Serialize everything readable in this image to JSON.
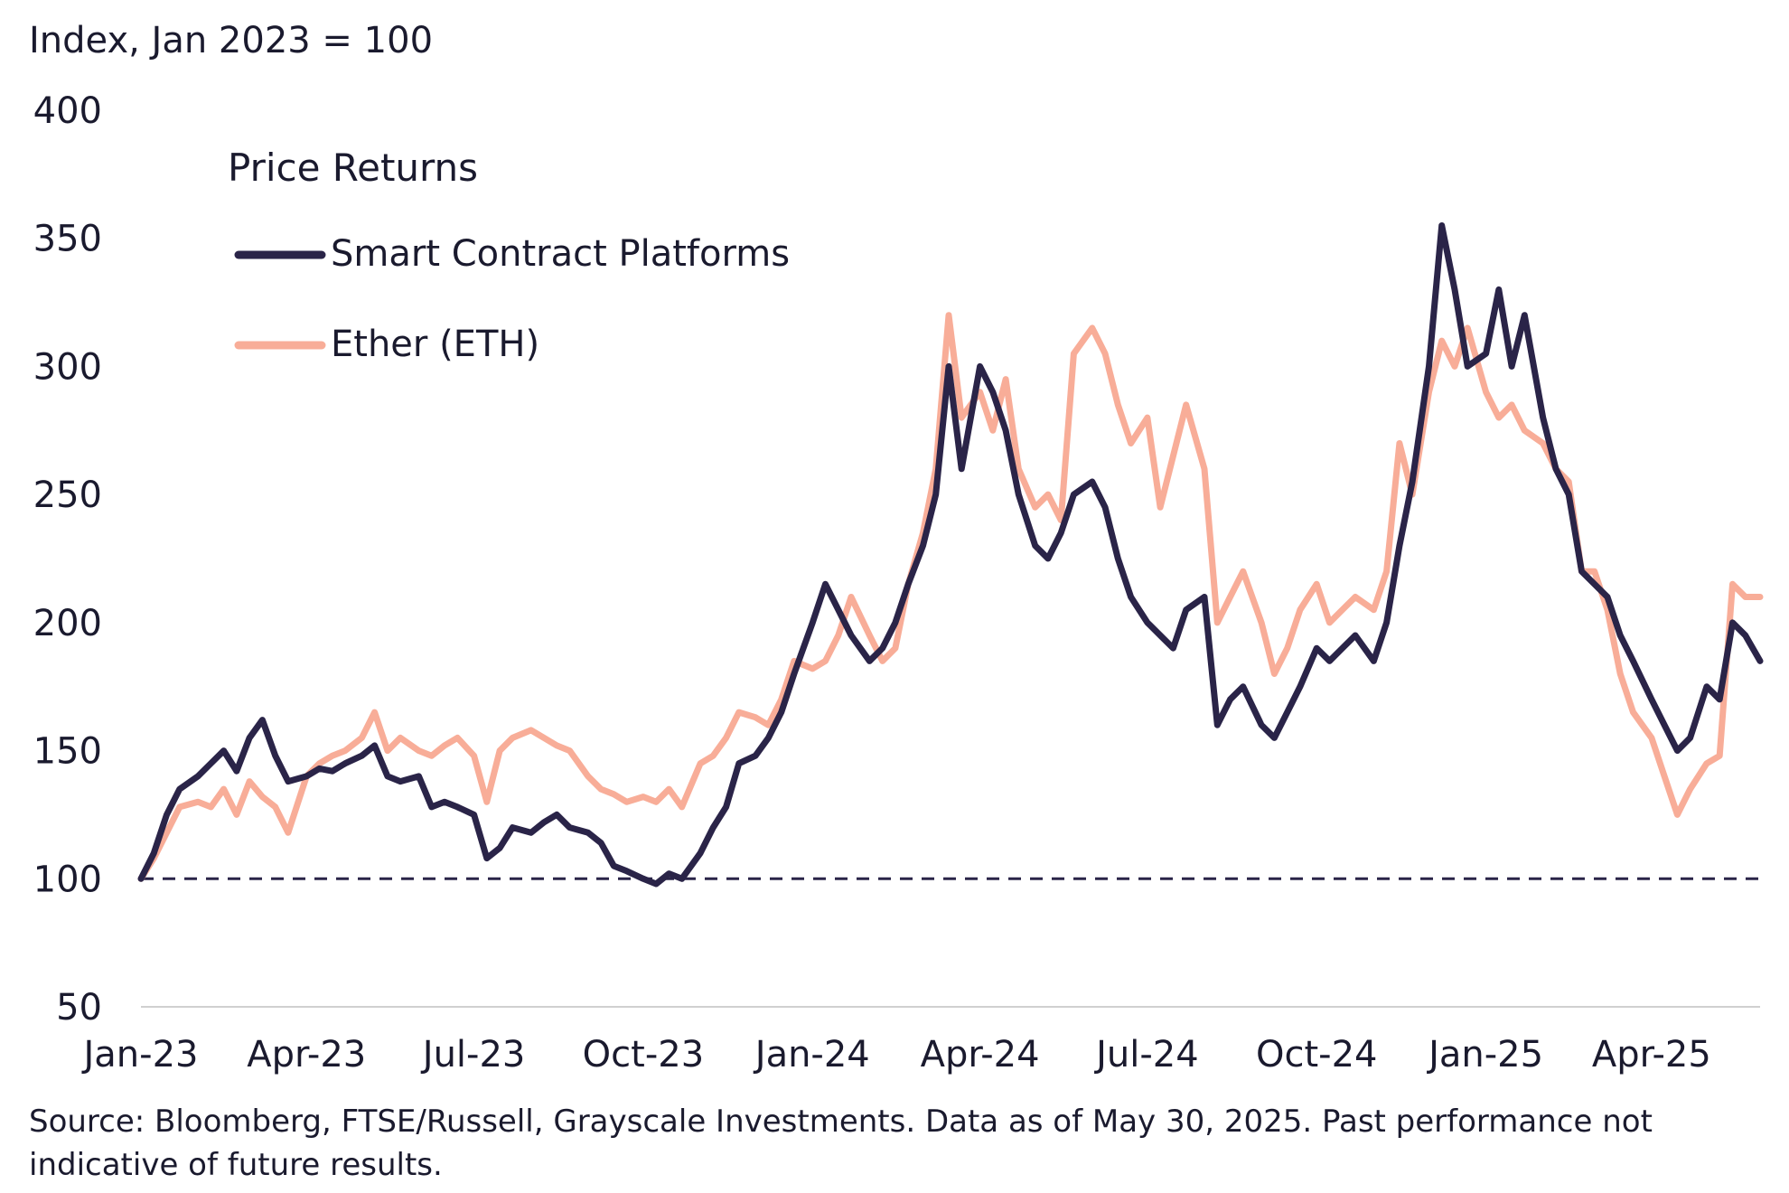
{
  "chart_data": {
    "type": "line",
    "ylabel": "Index, Jan 2023 = 100",
    "ylim": [
      50,
      400
    ],
    "yticks": [
      50,
      100,
      150,
      200,
      250,
      300,
      350,
      400
    ],
    "xlim": [
      "2023-01-01",
      "2025-05-30"
    ],
    "xticks": [
      {
        "date": "2023-01-01",
        "label": "Jan-23"
      },
      {
        "date": "2023-04-01",
        "label": "Apr-23"
      },
      {
        "date": "2023-07-01",
        "label": "Jul-23"
      },
      {
        "date": "2023-10-01",
        "label": "Oct-23"
      },
      {
        "date": "2024-01-01",
        "label": "Jan-24"
      },
      {
        "date": "2024-04-01",
        "label": "Apr-24"
      },
      {
        "date": "2024-07-01",
        "label": "Jul-24"
      },
      {
        "date": "2024-10-01",
        "label": "Oct-24"
      },
      {
        "date": "2025-01-01",
        "label": "Jan-25"
      },
      {
        "date": "2025-04-01",
        "label": "Apr-25"
      }
    ],
    "legend_title": "Price Returns",
    "legend_position": "top-left",
    "reference_line": {
      "value": 100,
      "style": "dashed",
      "color": "#2a2448"
    },
    "grid": false,
    "series": [
      {
        "name": "Smart Contract Platforms",
        "color": "#2a2448",
        "points": [
          [
            "2023-01-01",
            100
          ],
          [
            "2023-01-08",
            110
          ],
          [
            "2023-01-15",
            125
          ],
          [
            "2023-01-22",
            135
          ],
          [
            "2023-02-01",
            140
          ],
          [
            "2023-02-08",
            145
          ],
          [
            "2023-02-15",
            150
          ],
          [
            "2023-02-22",
            142
          ],
          [
            "2023-03-01",
            155
          ],
          [
            "2023-03-08",
            162
          ],
          [
            "2023-03-15",
            148
          ],
          [
            "2023-03-22",
            138
          ],
          [
            "2023-04-01",
            140
          ],
          [
            "2023-04-08",
            143
          ],
          [
            "2023-04-15",
            142
          ],
          [
            "2023-04-22",
            145
          ],
          [
            "2023-05-01",
            148
          ],
          [
            "2023-05-08",
            152
          ],
          [
            "2023-05-15",
            140
          ],
          [
            "2023-05-22",
            138
          ],
          [
            "2023-06-01",
            140
          ],
          [
            "2023-06-08",
            128
          ],
          [
            "2023-06-15",
            130
          ],
          [
            "2023-06-22",
            128
          ],
          [
            "2023-07-01",
            125
          ],
          [
            "2023-07-08",
            108
          ],
          [
            "2023-07-15",
            112
          ],
          [
            "2023-07-22",
            120
          ],
          [
            "2023-08-01",
            118
          ],
          [
            "2023-08-08",
            122
          ],
          [
            "2023-08-15",
            125
          ],
          [
            "2023-08-22",
            120
          ],
          [
            "2023-09-01",
            118
          ],
          [
            "2023-09-08",
            114
          ],
          [
            "2023-09-15",
            105
          ],
          [
            "2023-09-22",
            103
          ],
          [
            "2023-10-01",
            100
          ],
          [
            "2023-10-08",
            98
          ],
          [
            "2023-10-15",
            102
          ],
          [
            "2023-10-22",
            100
          ],
          [
            "2023-11-01",
            110
          ],
          [
            "2023-11-08",
            120
          ],
          [
            "2023-11-15",
            128
          ],
          [
            "2023-11-22",
            145
          ],
          [
            "2023-12-01",
            148
          ],
          [
            "2023-12-08",
            155
          ],
          [
            "2023-12-15",
            165
          ],
          [
            "2023-12-22",
            180
          ],
          [
            "2024-01-01",
            200
          ],
          [
            "2024-01-08",
            215
          ],
          [
            "2024-01-15",
            205
          ],
          [
            "2024-01-22",
            195
          ],
          [
            "2024-02-01",
            185
          ],
          [
            "2024-02-08",
            190
          ],
          [
            "2024-02-15",
            200
          ],
          [
            "2024-02-22",
            215
          ],
          [
            "2024-03-01",
            230
          ],
          [
            "2024-03-08",
            250
          ],
          [
            "2024-03-15",
            300
          ],
          [
            "2024-03-22",
            260
          ],
          [
            "2024-04-01",
            300
          ],
          [
            "2024-04-08",
            290
          ],
          [
            "2024-04-15",
            275
          ],
          [
            "2024-04-22",
            250
          ],
          [
            "2024-05-01",
            230
          ],
          [
            "2024-05-08",
            225
          ],
          [
            "2024-05-15",
            235
          ],
          [
            "2024-05-22",
            250
          ],
          [
            "2024-06-01",
            255
          ],
          [
            "2024-06-08",
            245
          ],
          [
            "2024-06-15",
            225
          ],
          [
            "2024-06-22",
            210
          ],
          [
            "2024-07-01",
            200
          ],
          [
            "2024-07-08",
            195
          ],
          [
            "2024-07-15",
            190
          ],
          [
            "2024-07-22",
            205
          ],
          [
            "2024-08-01",
            210
          ],
          [
            "2024-08-08",
            160
          ],
          [
            "2024-08-15",
            170
          ],
          [
            "2024-08-22",
            175
          ],
          [
            "2024-09-01",
            160
          ],
          [
            "2024-09-08",
            155
          ],
          [
            "2024-09-15",
            165
          ],
          [
            "2024-09-22",
            175
          ],
          [
            "2024-10-01",
            190
          ],
          [
            "2024-10-08",
            185
          ],
          [
            "2024-10-15",
            190
          ],
          [
            "2024-10-22",
            195
          ],
          [
            "2024-11-01",
            185
          ],
          [
            "2024-11-08",
            200
          ],
          [
            "2024-11-15",
            230
          ],
          [
            "2024-11-22",
            255
          ],
          [
            "2024-12-01",
            300
          ],
          [
            "2024-12-08",
            355
          ],
          [
            "2024-12-15",
            330
          ],
          [
            "2024-12-22",
            300
          ],
          [
            "2025-01-01",
            305
          ],
          [
            "2025-01-08",
            330
          ],
          [
            "2025-01-15",
            300
          ],
          [
            "2025-01-22",
            320
          ],
          [
            "2025-02-01",
            280
          ],
          [
            "2025-02-08",
            260
          ],
          [
            "2025-02-15",
            250
          ],
          [
            "2025-02-22",
            220
          ],
          [
            "2025-03-01",
            215
          ],
          [
            "2025-03-08",
            210
          ],
          [
            "2025-03-15",
            195
          ],
          [
            "2025-03-22",
            185
          ],
          [
            "2025-04-01",
            170
          ],
          [
            "2025-04-08",
            160
          ],
          [
            "2025-04-15",
            150
          ],
          [
            "2025-04-22",
            155
          ],
          [
            "2025-05-01",
            175
          ],
          [
            "2025-05-08",
            170
          ],
          [
            "2025-05-15",
            200
          ],
          [
            "2025-05-22",
            195
          ],
          [
            "2025-05-30",
            185
          ]
        ]
      },
      {
        "name": "Ether (ETH)",
        "color": "#f8ad98",
        "points": [
          [
            "2023-01-01",
            100
          ],
          [
            "2023-01-08",
            108
          ],
          [
            "2023-01-15",
            118
          ],
          [
            "2023-01-22",
            128
          ],
          [
            "2023-02-01",
            130
          ],
          [
            "2023-02-08",
            128
          ],
          [
            "2023-02-15",
            135
          ],
          [
            "2023-02-22",
            125
          ],
          [
            "2023-03-01",
            138
          ],
          [
            "2023-03-08",
            132
          ],
          [
            "2023-03-15",
            128
          ],
          [
            "2023-03-22",
            118
          ],
          [
            "2023-04-01",
            140
          ],
          [
            "2023-04-08",
            145
          ],
          [
            "2023-04-15",
            148
          ],
          [
            "2023-04-22",
            150
          ],
          [
            "2023-05-01",
            155
          ],
          [
            "2023-05-08",
            165
          ],
          [
            "2023-05-15",
            150
          ],
          [
            "2023-05-22",
            155
          ],
          [
            "2023-06-01",
            150
          ],
          [
            "2023-06-08",
            148
          ],
          [
            "2023-06-15",
            152
          ],
          [
            "2023-06-22",
            155
          ],
          [
            "2023-07-01",
            148
          ],
          [
            "2023-07-08",
            130
          ],
          [
            "2023-07-15",
            150
          ],
          [
            "2023-07-22",
            155
          ],
          [
            "2023-08-01",
            158
          ],
          [
            "2023-08-08",
            155
          ],
          [
            "2023-08-15",
            152
          ],
          [
            "2023-08-22",
            150
          ],
          [
            "2023-09-01",
            140
          ],
          [
            "2023-09-08",
            135
          ],
          [
            "2023-09-15",
            133
          ],
          [
            "2023-09-22",
            130
          ],
          [
            "2023-10-01",
            132
          ],
          [
            "2023-10-08",
            130
          ],
          [
            "2023-10-15",
            135
          ],
          [
            "2023-10-22",
            128
          ],
          [
            "2023-11-01",
            145
          ],
          [
            "2023-11-08",
            148
          ],
          [
            "2023-11-15",
            155
          ],
          [
            "2023-11-22",
            165
          ],
          [
            "2023-12-01",
            163
          ],
          [
            "2023-12-08",
            160
          ],
          [
            "2023-12-15",
            170
          ],
          [
            "2023-12-22",
            185
          ],
          [
            "2024-01-01",
            182
          ],
          [
            "2024-01-08",
            185
          ],
          [
            "2024-01-15",
            195
          ],
          [
            "2024-01-22",
            210
          ],
          [
            "2024-02-01",
            195
          ],
          [
            "2024-02-08",
            185
          ],
          [
            "2024-02-15",
            190
          ],
          [
            "2024-02-22",
            215
          ],
          [
            "2024-03-01",
            235
          ],
          [
            "2024-03-08",
            260
          ],
          [
            "2024-03-15",
            320
          ],
          [
            "2024-03-22",
            280
          ],
          [
            "2024-04-01",
            290
          ],
          [
            "2024-04-08",
            275
          ],
          [
            "2024-04-15",
            295
          ],
          [
            "2024-04-22",
            260
          ],
          [
            "2024-05-01",
            245
          ],
          [
            "2024-05-08",
            250
          ],
          [
            "2024-05-15",
            240
          ],
          [
            "2024-05-22",
            305
          ],
          [
            "2024-06-01",
            315
          ],
          [
            "2024-06-08",
            305
          ],
          [
            "2024-06-15",
            285
          ],
          [
            "2024-06-22",
            270
          ],
          [
            "2024-07-01",
            280
          ],
          [
            "2024-07-08",
            245
          ],
          [
            "2024-07-15",
            265
          ],
          [
            "2024-07-22",
            285
          ],
          [
            "2024-08-01",
            260
          ],
          [
            "2024-08-08",
            200
          ],
          [
            "2024-08-15",
            210
          ],
          [
            "2024-08-22",
            220
          ],
          [
            "2024-09-01",
            200
          ],
          [
            "2024-09-08",
            180
          ],
          [
            "2024-09-15",
            190
          ],
          [
            "2024-09-22",
            205
          ],
          [
            "2024-10-01",
            215
          ],
          [
            "2024-10-08",
            200
          ],
          [
            "2024-10-15",
            205
          ],
          [
            "2024-10-22",
            210
          ],
          [
            "2024-11-01",
            205
          ],
          [
            "2024-11-08",
            220
          ],
          [
            "2024-11-15",
            270
          ],
          [
            "2024-11-22",
            250
          ],
          [
            "2024-12-01",
            290
          ],
          [
            "2024-12-08",
            310
          ],
          [
            "2024-12-15",
            300
          ],
          [
            "2024-12-22",
            315
          ],
          [
            "2025-01-01",
            290
          ],
          [
            "2025-01-08",
            280
          ],
          [
            "2025-01-15",
            285
          ],
          [
            "2025-01-22",
            275
          ],
          [
            "2025-02-01",
            270
          ],
          [
            "2025-02-08",
            260
          ],
          [
            "2025-02-15",
            255
          ],
          [
            "2025-02-22",
            220
          ],
          [
            "2025-03-01",
            220
          ],
          [
            "2025-03-08",
            205
          ],
          [
            "2025-03-15",
            180
          ],
          [
            "2025-03-22",
            165
          ],
          [
            "2025-04-01",
            155
          ],
          [
            "2025-04-08",
            140
          ],
          [
            "2025-04-15",
            125
          ],
          [
            "2025-04-22",
            135
          ],
          [
            "2025-05-01",
            145
          ],
          [
            "2025-05-08",
            148
          ],
          [
            "2025-05-15",
            215
          ],
          [
            "2025-05-22",
            210
          ],
          [
            "2025-05-30",
            210
          ]
        ]
      }
    ]
  },
  "source_note": "Source: Bloomberg, FTSE/Russell, Grayscale Investments. Data as of May 30, 2025. Past performance not indicative of future results."
}
